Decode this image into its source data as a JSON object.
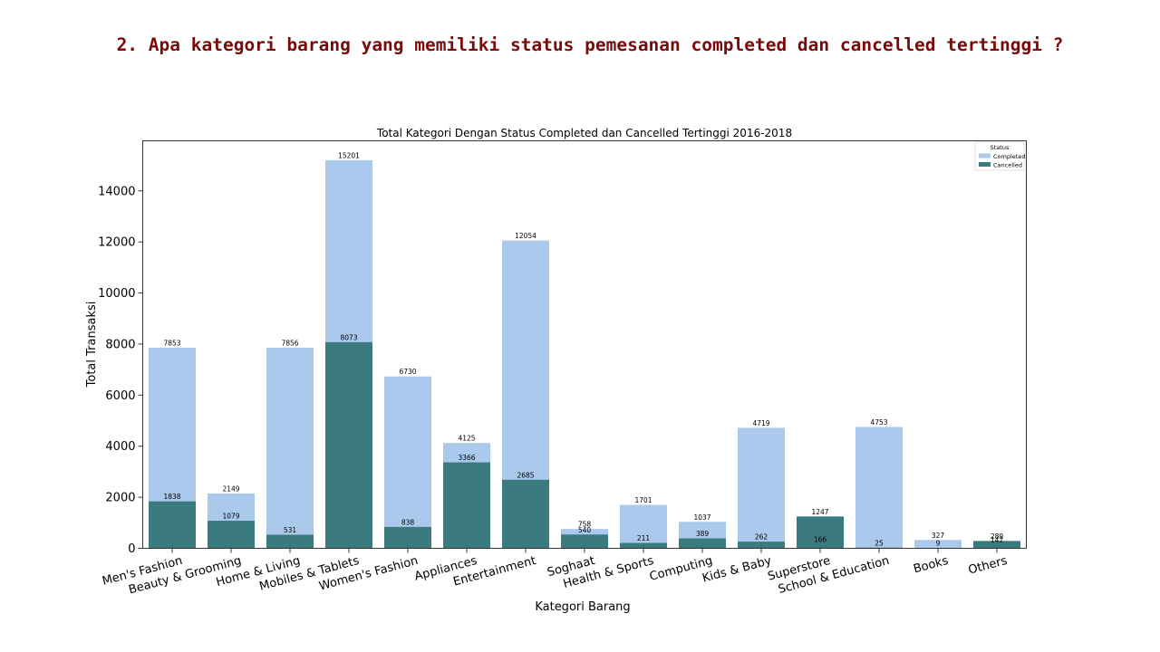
{
  "slide": {
    "heading": "2. Apa kategori barang yang memiliki status pemesanan completed dan cancelled tertinggi ?"
  },
  "chart_data": {
    "type": "bar",
    "title": "Total Kategori Dengan Status Completed dan Cancelled Tertinggi 2016-2018",
    "xlabel": "Kategori Barang",
    "ylabel": "Total Transaksi",
    "ylim": [
      0,
      15960
    ],
    "yticks": [
      0,
      2000,
      4000,
      6000,
      8000,
      10000,
      12000,
      14000
    ],
    "legend": {
      "title": "Status",
      "placement": "top-right"
    },
    "categories": [
      "Men's Fashion",
      "Beauty & Grooming",
      "Home & Living",
      "Mobiles & Tablets",
      "Women's Fashion",
      "Appliances",
      "Entertainment",
      "Soghaat",
      "Health & Sports",
      "Computing",
      "Kids & Baby",
      "Superstore",
      "School & Education",
      "Books",
      "Others"
    ],
    "series": [
      {
        "name": "Completed",
        "color": "#aac9ec",
        "values": [
          7853,
          2149,
          7856,
          15201,
          6730,
          4125,
          12054,
          758,
          1701,
          1037,
          4719,
          166,
          4753,
          327,
          142
        ]
      },
      {
        "name": "Cancelled",
        "color": "#3b7b80",
        "values": [
          1838,
          1079,
          531,
          8073,
          838,
          3366,
          2685,
          540,
          211,
          389,
          262,
          1247,
          25,
          9,
          289
        ]
      }
    ]
  }
}
